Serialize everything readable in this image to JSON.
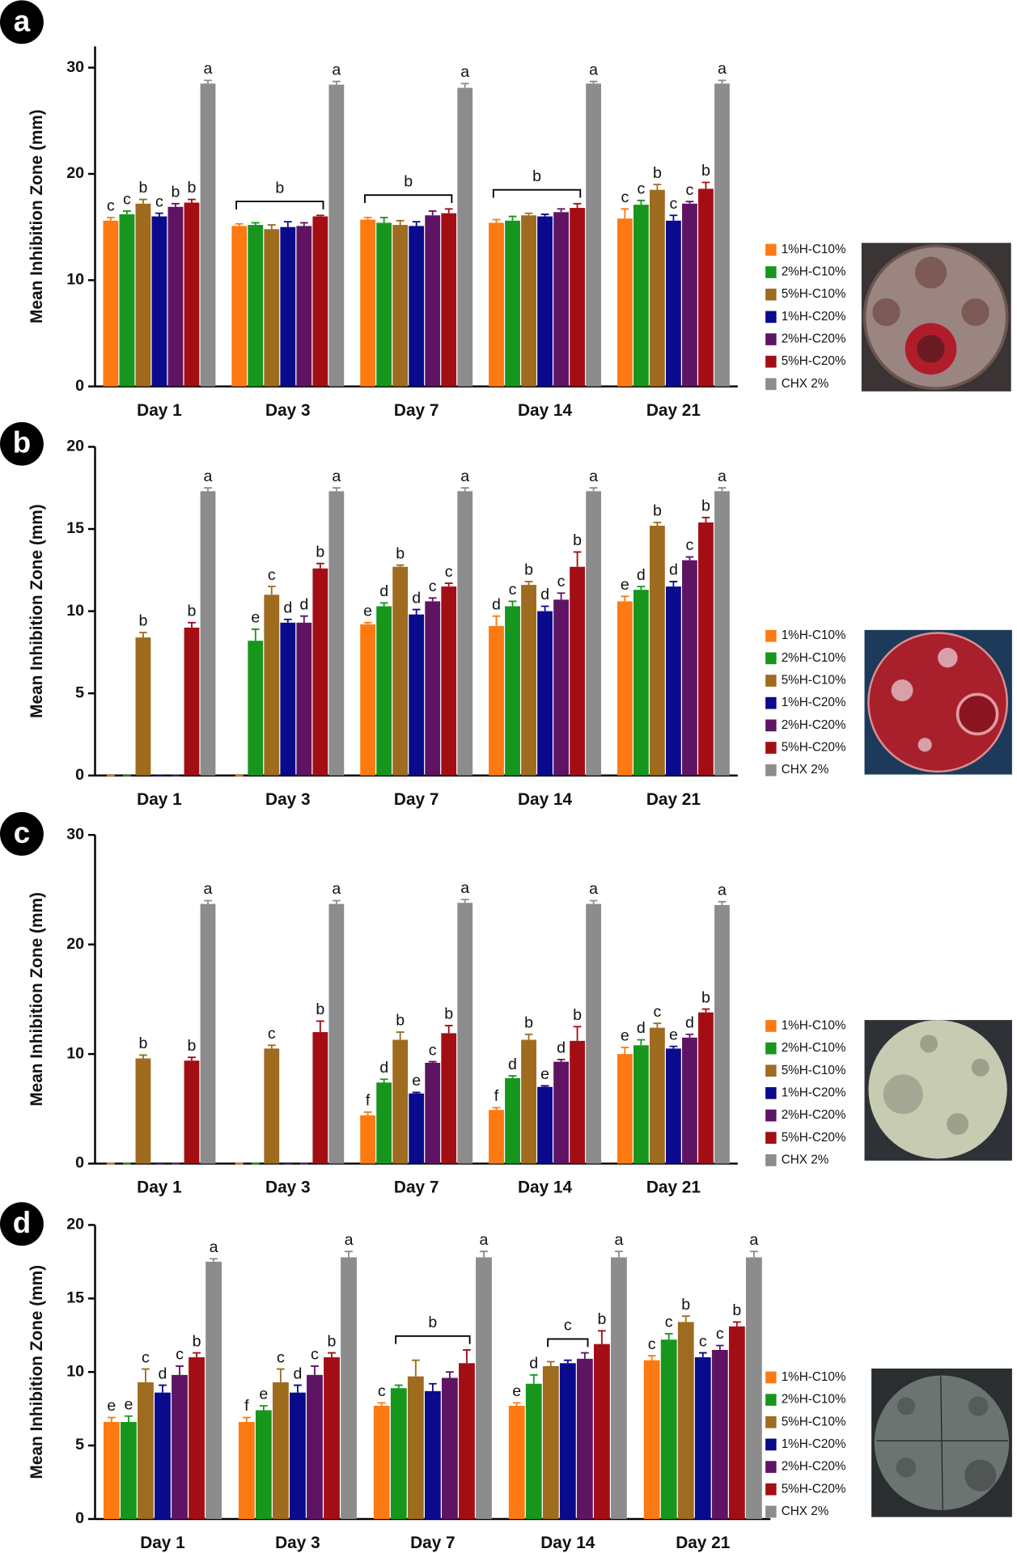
{
  "chart_data": [
    {
      "type": "bar",
      "panel": "a",
      "y_label": "Mean Inhibition Zone (mm)",
      "categories": [
        "Day 1",
        "Day 3",
        "Day 7",
        "Day 14",
        "Day 21"
      ],
      "ylim": [
        0,
        32
      ],
      "yticks": [
        0,
        10,
        20,
        30
      ],
      "series": [
        {
          "name": "1%H-C10%",
          "color": "#fd7a12",
          "values": [
            15.6,
            15.1,
            15.7,
            15.4,
            15.8
          ],
          "errors": [
            0.3,
            0.2,
            0.2,
            0.3,
            0.9
          ],
          "letters": [
            "c",
            null,
            null,
            null,
            "c"
          ]
        },
        {
          "name": "2%H-C10%",
          "color": "#17961e",
          "values": [
            16.2,
            15.2,
            15.4,
            15.6,
            17.1
          ],
          "errors": [
            0.3,
            0.2,
            0.5,
            0.4,
            0.4
          ],
          "letters": [
            "c",
            null,
            null,
            null,
            "c"
          ]
        },
        {
          "name": "5%H-C10%",
          "color": "#9e6b1f",
          "values": [
            17.2,
            14.8,
            15.2,
            16.1,
            18.5
          ],
          "errors": [
            0.4,
            0.4,
            0.4,
            0.2,
            0.5
          ],
          "letters": [
            "b",
            null,
            null,
            null,
            "b"
          ]
        },
        {
          "name": "1%H-C20%",
          "color": "#0a0a8c",
          "values": [
            16.0,
            15.0,
            15.1,
            16.0,
            15.6
          ],
          "errors": [
            0.3,
            0.5,
            0.4,
            0.2,
            0.5
          ],
          "letters": [
            "c",
            null,
            null,
            null,
            "c"
          ]
        },
        {
          "name": "2%H-C20%",
          "color": "#5e1463",
          "values": [
            16.9,
            15.1,
            16.1,
            16.4,
            17.2
          ],
          "errors": [
            0.3,
            0.3,
            0.4,
            0.3,
            0.2
          ],
          "letters": [
            "b",
            null,
            null,
            null,
            "c"
          ]
        },
        {
          "name": "5%H-C20%",
          "color": "#a30e14",
          "values": [
            17.3,
            16.0,
            16.3,
            16.8,
            18.6
          ],
          "errors": [
            0.3,
            0.1,
            0.4,
            0.4,
            0.6
          ],
          "letters": [
            "b",
            null,
            null,
            null,
            "b"
          ]
        },
        {
          "name": "CHX 2%",
          "color": "#8c8c8c",
          "values": [
            28.5,
            28.4,
            28.1,
            28.5,
            28.5
          ],
          "errors": [
            0.3,
            0.3,
            0.4,
            0.2,
            0.3
          ],
          "letters": [
            "a",
            "a",
            "a",
            "a",
            "a"
          ]
        }
      ],
      "brackets": [
        {
          "category": "Day 3",
          "from": "1%H-C10%",
          "to": "5%H-C20%",
          "label": "b"
        },
        {
          "category": "Day 7",
          "from": "1%H-C10%",
          "to": "5%H-C20%",
          "label": "b"
        },
        {
          "category": "Day 14",
          "from": "1%H-C10%",
          "to": "5%H-C20%",
          "label": "b"
        }
      ]
    },
    {
      "type": "bar",
      "panel": "b",
      "y_label": "Mean Inhibition Zone (mm)",
      "categories": [
        "Day 1",
        "Day 3",
        "Day 7",
        "Day 14",
        "Day 21"
      ],
      "ylim": [
        0,
        20
      ],
      "yticks": [
        0,
        5,
        10,
        15,
        20
      ],
      "series": [
        {
          "name": "1%H-C10%",
          "color": "#fd7a12",
          "values": [
            0,
            0,
            9.2,
            9.1,
            10.6
          ],
          "errors": [
            0,
            0,
            0.1,
            0.6,
            0.3
          ],
          "letters": [
            null,
            null,
            "e",
            "d",
            "e"
          ]
        },
        {
          "name": "2%H-C10%",
          "color": "#17961e",
          "values": [
            0,
            8.2,
            10.3,
            10.3,
            11.3
          ],
          "errors": [
            0,
            0.7,
            0.2,
            0.3,
            0.2
          ],
          "letters": [
            null,
            "e",
            "d",
            "c",
            "d"
          ]
        },
        {
          "name": "5%H-C10%",
          "color": "#9e6b1f",
          "values": [
            8.4,
            11.0,
            12.7,
            11.6,
            15.2
          ],
          "errors": [
            0.3,
            0.5,
            0.1,
            0.2,
            0.2
          ],
          "letters": [
            "b",
            "c",
            "b",
            "b",
            "b"
          ]
        },
        {
          "name": "1%H-C20%",
          "color": "#0a0a8c",
          "values": [
            0,
            9.3,
            9.8,
            10.0,
            11.5
          ],
          "errors": [
            0,
            0.2,
            0.3,
            0.3,
            0.3
          ],
          "letters": [
            null,
            "d",
            "d",
            "d",
            "d"
          ]
        },
        {
          "name": "2%H-C20%",
          "color": "#5e1463",
          "values": [
            0,
            9.3,
            10.6,
            10.7,
            13.1
          ],
          "errors": [
            0,
            0.4,
            0.2,
            0.4,
            0.2
          ],
          "letters": [
            null,
            "d",
            "c",
            "c",
            "c"
          ]
        },
        {
          "name": "5%H-C20%",
          "color": "#a30e14",
          "values": [
            9.0,
            12.6,
            11.5,
            12.7,
            15.4
          ],
          "errors": [
            0.3,
            0.3,
            0.2,
            0.9,
            0.3
          ],
          "letters": [
            "b",
            "b",
            "c",
            "b",
            "b"
          ]
        },
        {
          "name": "CHX 2%",
          "color": "#8c8c8c",
          "values": [
            17.3,
            17.3,
            17.3,
            17.3,
            17.3
          ],
          "errors": [
            0.2,
            0.2,
            0.2,
            0.2,
            0.2
          ],
          "letters": [
            "a",
            "a",
            "a",
            "a",
            "a"
          ]
        }
      ],
      "brackets": []
    },
    {
      "type": "bar",
      "panel": "c",
      "y_label": "Mean Inhibition Zone (mm)",
      "categories": [
        "Day 1",
        "Day 3",
        "Day 7",
        "Day 14",
        "Day 21"
      ],
      "ylim": [
        0,
        30
      ],
      "yticks": [
        0,
        10,
        20,
        30
      ],
      "series": [
        {
          "name": "1%H-C10%",
          "color": "#fd7a12",
          "values": [
            0,
            0,
            4.4,
            4.9,
            10.0
          ],
          "errors": [
            0,
            0,
            0.3,
            0.2,
            0.6
          ],
          "letters": [
            null,
            null,
            "f",
            "f",
            "e"
          ]
        },
        {
          "name": "2%H-C10%",
          "color": "#17961e",
          "values": [
            0,
            0,
            7.4,
            7.8,
            10.8
          ],
          "errors": [
            0,
            0,
            0.3,
            0.2,
            0.5
          ],
          "letters": [
            null,
            null,
            "d",
            "d",
            "d"
          ]
        },
        {
          "name": "5%H-C10%",
          "color": "#9e6b1f",
          "values": [
            9.6,
            10.5,
            11.3,
            11.3,
            12.4
          ],
          "errors": [
            0.3,
            0.3,
            0.7,
            0.5,
            0.4
          ],
          "letters": [
            "b",
            "c",
            "b",
            "b",
            "c"
          ]
        },
        {
          "name": "1%H-C20%",
          "color": "#0a0a8c",
          "values": [
            0,
            0,
            6.4,
            7.0,
            10.5
          ],
          "errors": [
            0,
            0,
            0.1,
            0.1,
            0.2
          ],
          "letters": [
            null,
            null,
            "e",
            "e",
            "e"
          ]
        },
        {
          "name": "2%H-C20%",
          "color": "#5e1463",
          "values": [
            0,
            0,
            9.2,
            9.3,
            11.5
          ],
          "errors": [
            0,
            0,
            0.1,
            0.2,
            0.3
          ],
          "letters": [
            null,
            null,
            "c",
            "d",
            "d"
          ]
        },
        {
          "name": "5%H-C20%",
          "color": "#a30e14",
          "values": [
            9.4,
            12.0,
            11.9,
            11.2,
            13.8
          ],
          "errors": [
            0.3,
            1.0,
            0.7,
            1.3,
            0.3
          ],
          "letters": [
            "b",
            "b",
            "b",
            "b",
            "b"
          ]
        },
        {
          "name": "CHX 2%",
          "color": "#8c8c8c",
          "values": [
            23.7,
            23.7,
            23.8,
            23.7,
            23.6
          ],
          "errors": [
            0.3,
            0.3,
            0.3,
            0.3,
            0.3
          ],
          "letters": [
            "a",
            "a",
            "a",
            "a",
            "a"
          ]
        }
      ],
      "brackets": []
    },
    {
      "type": "bar",
      "panel": "d",
      "y_label": "Mean Inhibition Zone (mm)",
      "categories": [
        "Day 1",
        "Day 3",
        "Day 7",
        "Day 14",
        "Day 21"
      ],
      "ylim": [
        0,
        20
      ],
      "yticks": [
        0,
        5,
        10,
        15,
        20
      ],
      "series": [
        {
          "name": "1%H-C10%",
          "color": "#fd7a12",
          "values": [
            6.6,
            6.6,
            7.7,
            7.7,
            10.8
          ],
          "errors": [
            0.3,
            0.3,
            0.2,
            0.2,
            0.3
          ],
          "letters": [
            "e",
            "f",
            "c",
            "e",
            "c"
          ]
        },
        {
          "name": "2%H-C10%",
          "color": "#17961e",
          "values": [
            6.6,
            7.4,
            8.9,
            9.2,
            12.2
          ],
          "errors": [
            0.4,
            0.3,
            0.2,
            0.6,
            0.4
          ],
          "letters": [
            "e",
            "e",
            null,
            "d",
            "c"
          ]
        },
        {
          "name": "5%H-C10%",
          "color": "#9e6b1f",
          "values": [
            9.3,
            9.3,
            9.7,
            10.4,
            13.4
          ],
          "errors": [
            0.9,
            0.9,
            1.1,
            0.3,
            0.4
          ],
          "letters": [
            "c",
            "c",
            null,
            null,
            "b"
          ]
        },
        {
          "name": "1%H-C20%",
          "color": "#0a0a8c",
          "values": [
            8.6,
            8.6,
            8.7,
            10.6,
            11.0
          ],
          "errors": [
            0.5,
            0.5,
            0.5,
            0.2,
            0.3
          ],
          "letters": [
            "d",
            "d",
            null,
            null,
            "c"
          ]
        },
        {
          "name": "2%H-C20%",
          "color": "#5e1463",
          "values": [
            9.8,
            9.8,
            9.6,
            10.9,
            11.5
          ],
          "errors": [
            0.6,
            0.6,
            0.4,
            0.4,
            0.3
          ],
          "letters": [
            "c",
            "c",
            null,
            null,
            "c"
          ]
        },
        {
          "name": "5%H-C20%",
          "color": "#a30e14",
          "values": [
            11.0,
            11.0,
            10.6,
            11.9,
            13.1
          ],
          "errors": [
            0.3,
            0.3,
            0.9,
            0.9,
            0.3
          ],
          "letters": [
            "b",
            "b",
            null,
            "b",
            "b"
          ]
        },
        {
          "name": "CHX 2%",
          "color": "#8c8c8c",
          "values": [
            17.5,
            17.8,
            17.8,
            17.8,
            17.8
          ],
          "errors": [
            0.2,
            0.4,
            0.4,
            0.4,
            0.4
          ],
          "letters": [
            "a",
            "a",
            "a",
            "a",
            "a"
          ]
        }
      ],
      "brackets": [
        {
          "category": "Day 7",
          "from": "2%H-C10%",
          "to": "5%H-C20%",
          "label": "b"
        },
        {
          "category": "Day 14",
          "from": "5%H-C10%",
          "to": "2%H-C20%",
          "label": "c"
        }
      ]
    }
  ]
}
